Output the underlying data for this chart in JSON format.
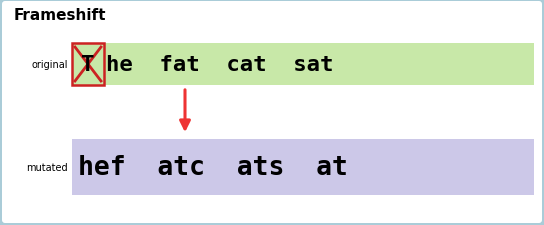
{
  "title": "Frameshift",
  "title_fontsize": 11,
  "title_fontweight": "bold",
  "fig_bg": "#aaccd8",
  "inner_bg": "#ffffff",
  "original_label": "original",
  "mutated_label": "mutated",
  "original_text": "he  fat  cat  sat",
  "mutated_text": "hef  atc  ats  at",
  "deleted_char": "T",
  "original_bg": "#c8e8a8",
  "mutated_bg": "#ccc8e8",
  "deleted_box_color": "#cc2222",
  "arrow_color": "#ee3333",
  "label_fontsize": 7,
  "seq_fontsize": 16,
  "deleted_fontsize": 16
}
